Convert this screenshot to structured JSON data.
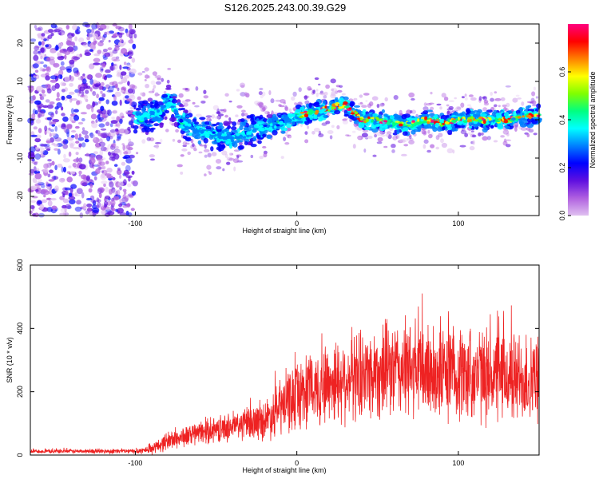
{
  "title": "S126.2025.243.00.39.G29",
  "chart_data": [
    {
      "type": "heatmap",
      "name": "spectrogram",
      "xlabel": "Height of straight line (km)",
      "ylabel": "Frequency (Hz)",
      "xlim": [
        -165,
        150
      ],
      "ylim": [
        -25,
        25
      ],
      "xticks": [
        -100,
        0,
        100
      ],
      "yticks": [
        -20,
        -10,
        0,
        10,
        20
      ],
      "colorbar": {
        "label": "Normalized spectral amplitude",
        "range": [
          0.0,
          0.8
        ],
        "ticks": [
          0.0,
          0.2,
          0.4,
          0.6
        ],
        "colors": [
          "#e0c0f0",
          "#b060e0",
          "#6010e0",
          "#0000ff",
          "#0080ff",
          "#00ffff",
          "#00ff80",
          "#80ff00",
          "#ffff00",
          "#ff8000",
          "#ff0000",
          "#ff0080"
        ]
      },
      "ridge": {
        "description_points_x": [
          -100,
          -85,
          -80,
          -70,
          -60,
          -50,
          -40,
          -30,
          -20,
          -10,
          0,
          10,
          20,
          30,
          40,
          50,
          60,
          70,
          80,
          90,
          100,
          110,
          120,
          130,
          140,
          150
        ],
        "center_freq_hz": [
          0,
          2,
          5,
          -1,
          -3,
          -4,
          -5,
          -3,
          -2,
          -1,
          1,
          2,
          3,
          4,
          0,
          0,
          -1,
          -1,
          0,
          -1,
          0,
          0,
          0,
          0,
          1,
          1
        ]
      }
    },
    {
      "type": "line",
      "name": "snr",
      "xlabel": "Height of straight line (km)",
      "ylabel": "SNR (10 * v/v)",
      "xlim": [
        -165,
        150
      ],
      "ylim": [
        0,
        600
      ],
      "xticks": [
        -100,
        0,
        100
      ],
      "yticks": [
        0,
        200,
        400,
        600
      ],
      "color": "#ee2222",
      "envelope": {
        "x": [
          -165,
          -100,
          -90,
          -80,
          -60,
          -40,
          -20,
          -10,
          0,
          20,
          40,
          60,
          80,
          100,
          120,
          140,
          150
        ],
        "mean": [
          12,
          12,
          18,
          45,
          70,
          90,
          110,
          150,
          190,
          230,
          255,
          270,
          265,
          260,
          250,
          240,
          235
        ],
        "spread": [
          6,
          8,
          15,
          30,
          35,
          45,
          60,
          90,
          110,
          130,
          140,
          150,
          155,
          150,
          145,
          140,
          135
        ]
      }
    }
  ]
}
